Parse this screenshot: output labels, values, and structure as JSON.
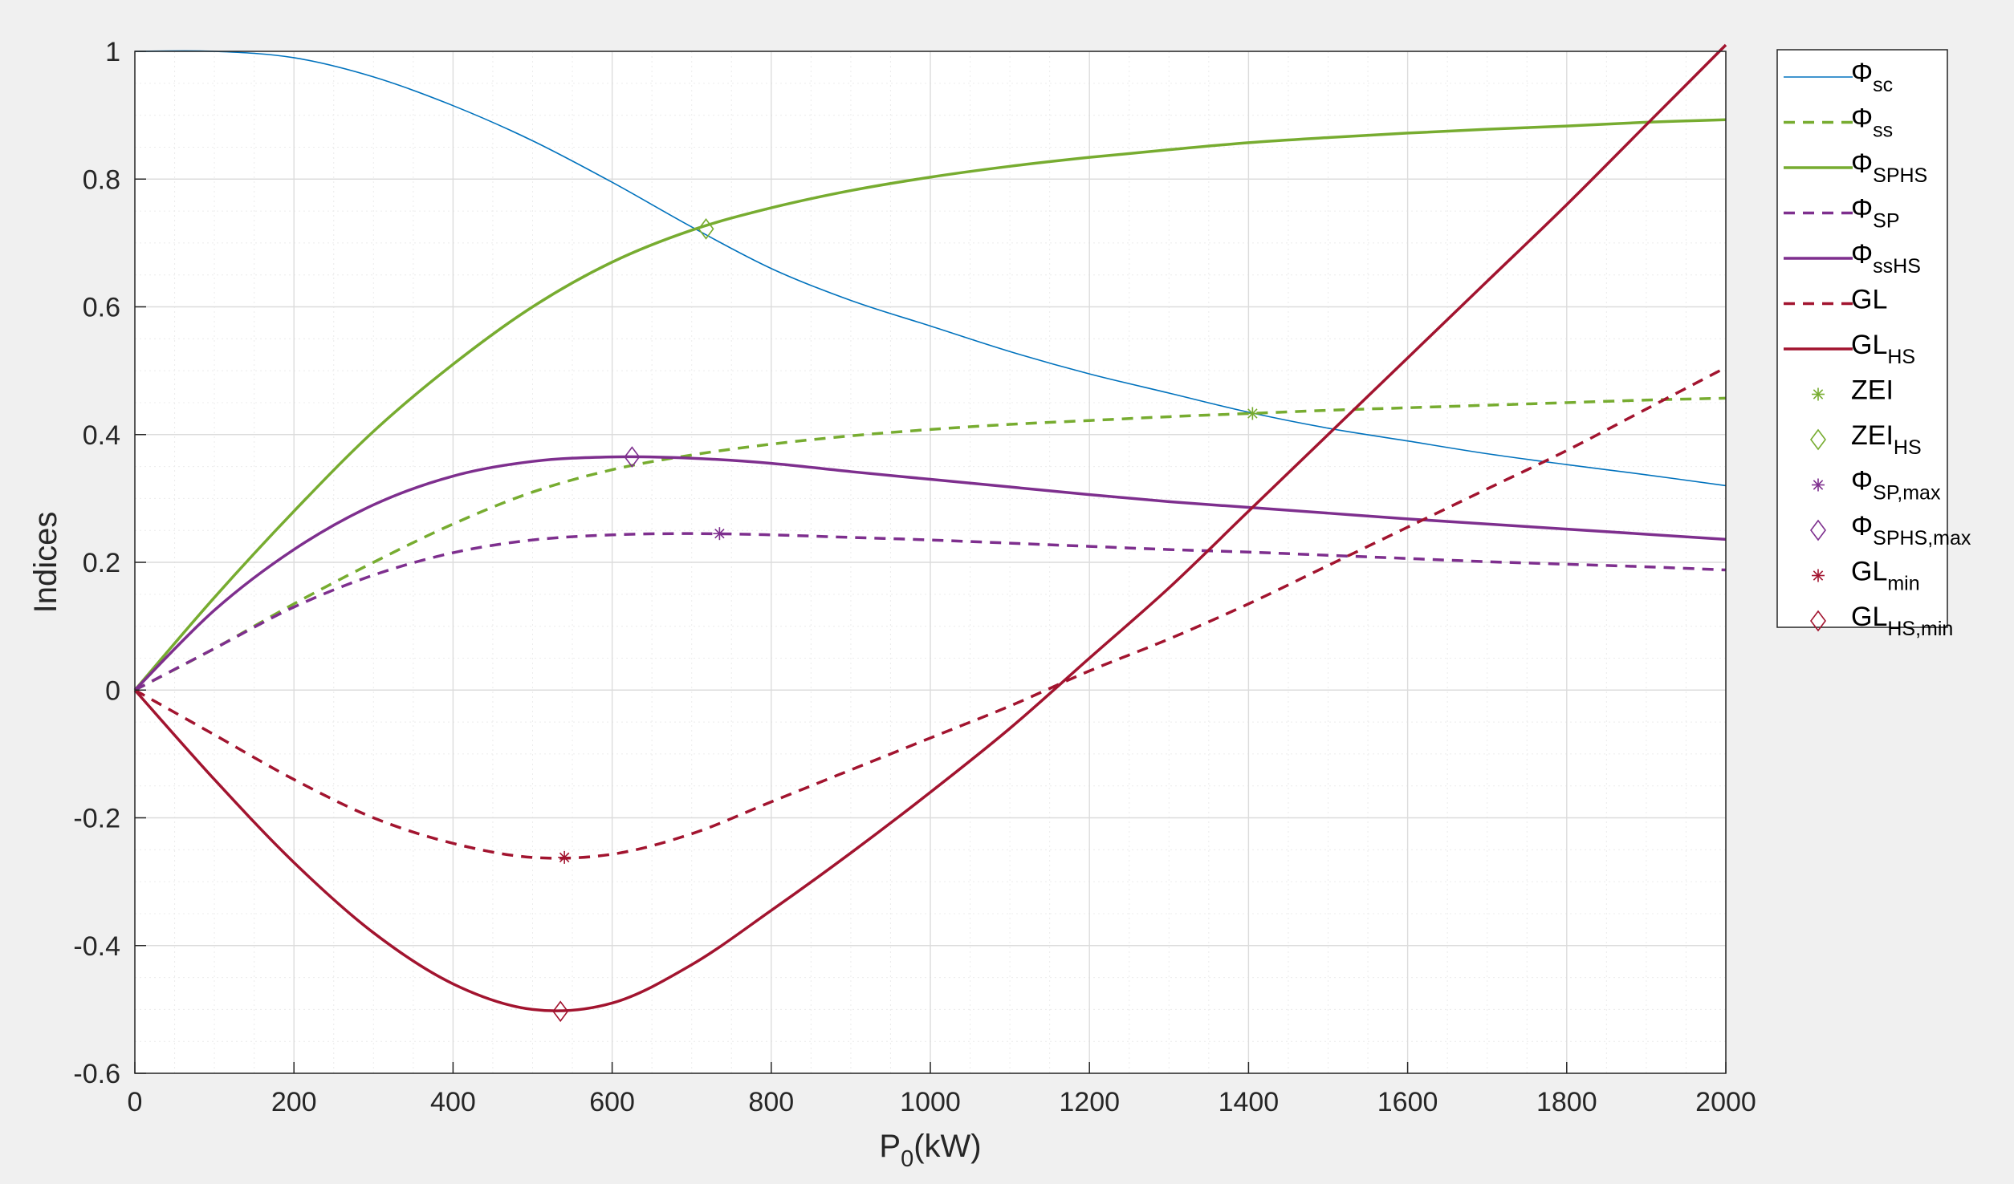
{
  "chart_data": {
    "type": "line",
    "title": "",
    "xlabel": "P",
    "xlabel_sub": "0",
    "xlabel_rest": "(kW)",
    "ylabel": "Indices",
    "xlim": [
      0,
      2000
    ],
    "ylim": [
      -0.6,
      1
    ],
    "xticks": [
      0,
      200,
      400,
      600,
      800,
      1000,
      1200,
      1400,
      1600,
      1800,
      2000
    ],
    "yticks": [
      -0.6,
      -0.4,
      -0.2,
      0,
      0.2,
      0.4,
      0.6,
      0.8,
      1
    ],
    "ytick_labels": [
      "-0.6",
      "-0.4",
      "-0.2",
      "0",
      "0.2",
      "0.4",
      "0.6",
      "0.8",
      "1"
    ],
    "grid": "on (major and minor)",
    "legend_location": "outside right, top",
    "x": [
      0,
      100,
      200,
      300,
      400,
      500,
      600,
      700,
      800,
      900,
      1000,
      1100,
      1200,
      1300,
      1400,
      1500,
      1600,
      1700,
      1800,
      1900,
      2000
    ],
    "series": [
      {
        "name": "Φ",
        "sub": "sc",
        "style": "solid",
        "width": 1.6,
        "color": "#0072bd",
        "values": [
          1,
          1,
          0.99,
          0.96,
          0.915,
          0.86,
          0.795,
          0.725,
          0.66,
          0.61,
          0.57,
          0.53,
          0.495,
          0.465,
          0.435,
          0.41,
          0.39,
          0.37,
          0.353,
          0.337,
          0.32
        ]
      },
      {
        "name": "Φ",
        "sub": "ss",
        "style": "dashed",
        "width": 3.5,
        "color": "#77ac30",
        "values": [
          0,
          0.065,
          0.135,
          0.2,
          0.26,
          0.31,
          0.345,
          0.368,
          0.385,
          0.398,
          0.408,
          0.416,
          0.422,
          0.428,
          0.433,
          0.438,
          0.442,
          0.446,
          0.45,
          0.454,
          0.457
        ]
      },
      {
        "name": "Φ",
        "sub": "SPHS",
        "style": "solid",
        "width": 3.5,
        "color": "#77ac30",
        "values": [
          0,
          0.145,
          0.28,
          0.405,
          0.51,
          0.6,
          0.67,
          0.72,
          0.755,
          0.782,
          0.803,
          0.82,
          0.834,
          0.846,
          0.857,
          0.865,
          0.872,
          0.878,
          0.883,
          0.889,
          0.893
        ]
      },
      {
        "name": "Φ",
        "sub": "SP",
        "style": "dashed",
        "width": 3.5,
        "color": "#7e2f8e",
        "values": [
          0,
          0.065,
          0.13,
          0.18,
          0.215,
          0.235,
          0.243,
          0.245,
          0.243,
          0.239,
          0.235,
          0.23,
          0.225,
          0.22,
          0.216,
          0.211,
          0.206,
          0.201,
          0.197,
          0.193,
          0.188
        ]
      },
      {
        "name": "Φ",
        "sub": "ssHS",
        "style": "solid",
        "width": 3.5,
        "color": "#7e2f8e",
        "values": [
          0,
          0.125,
          0.22,
          0.29,
          0.335,
          0.358,
          0.365,
          0.363,
          0.355,
          0.342,
          0.33,
          0.318,
          0.306,
          0.295,
          0.286,
          0.277,
          0.268,
          0.26,
          0.252,
          0.244,
          0.236
        ]
      },
      {
        "name": "GL",
        "sub": "",
        "style": "dashed",
        "width": 3.5,
        "color": "#a2142f",
        "values": [
          0,
          -0.07,
          -0.14,
          -0.2,
          -0.24,
          -0.262,
          -0.257,
          -0.225,
          -0.175,
          -0.125,
          -0.075,
          -0.025,
          0.03,
          0.08,
          0.135,
          0.195,
          0.255,
          0.315,
          0.375,
          0.44,
          0.505
        ]
      },
      {
        "name": "GL",
        "sub": "HS",
        "style": "solid",
        "width": 3.5,
        "color": "#a2142f",
        "values": [
          0,
          -0.14,
          -0.27,
          -0.38,
          -0.46,
          -0.5,
          -0.49,
          -0.43,
          -0.345,
          -0.255,
          -0.16,
          -0.06,
          0.05,
          0.16,
          0.28,
          0.4,
          0.52,
          0.64,
          0.76,
          0.885,
          1.01
        ]
      }
    ],
    "markers": [
      {
        "name": "ZEI",
        "sub": "",
        "shape": "asterisk",
        "color": "#77ac30",
        "x": 1405,
        "y": 0.433
      },
      {
        "name": "ZEI",
        "sub": "HS",
        "shape": "diamond",
        "color": "#77ac30",
        "x": 718,
        "y": 0.722
      },
      {
        "name": "Φ",
        "sub": "SP,max",
        "shape": "asterisk",
        "color": "#7e2f8e",
        "x": 735,
        "y": 0.245
      },
      {
        "name": "Φ",
        "sub": "SPHS,max",
        "shape": "diamond",
        "color": "#7e2f8e",
        "x": 625,
        "y": 0.365
      },
      {
        "name": "GL",
        "sub": "min",
        "shape": "asterisk",
        "color": "#a2142f",
        "x": 540,
        "y": -0.262
      },
      {
        "name": "GL",
        "sub": "HS,min",
        "shape": "diamond",
        "color": "#a2142f",
        "x": 535,
        "y": -0.503
      }
    ]
  }
}
